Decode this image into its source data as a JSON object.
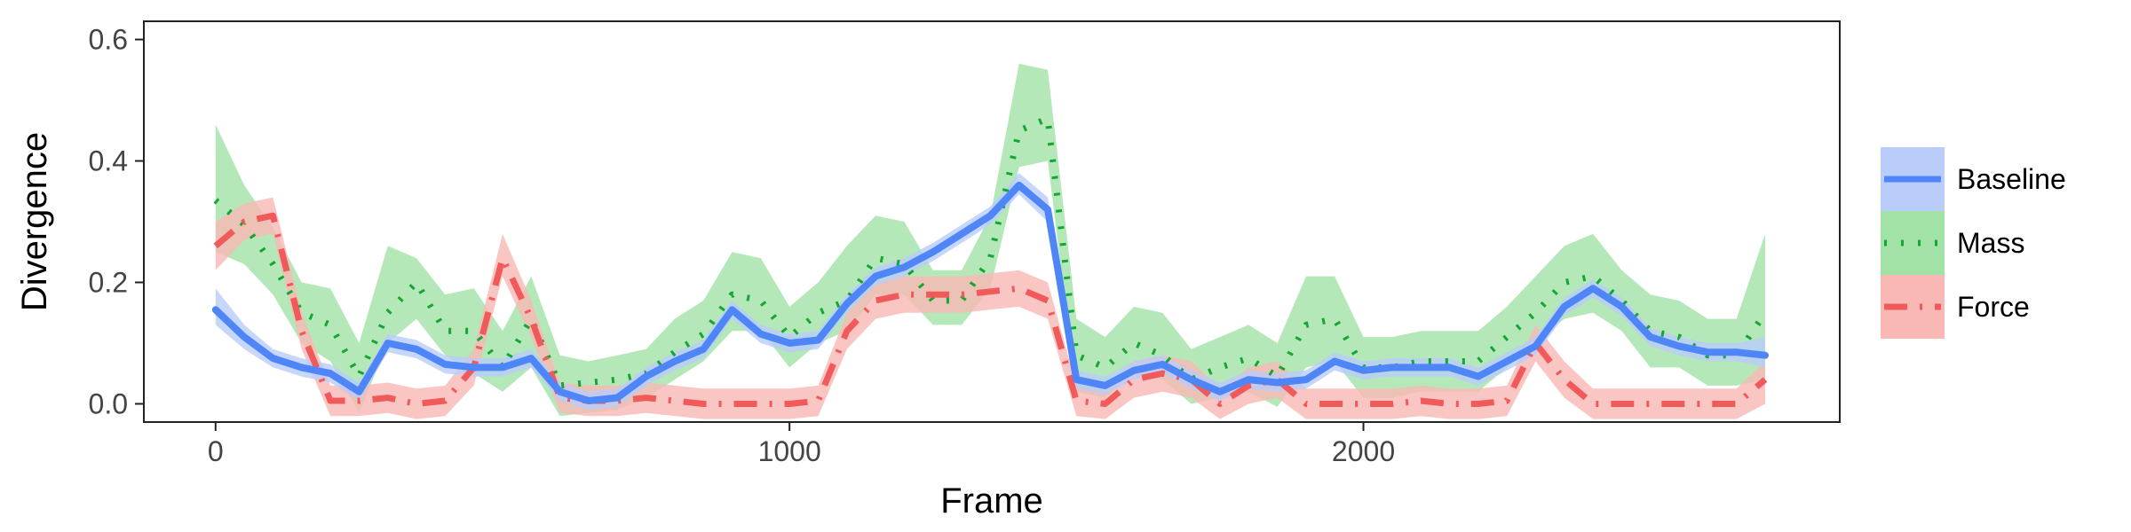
{
  "chart_data": {
    "type": "line",
    "xlabel": "Frame",
    "ylabel": "Divergence",
    "xlim": [
      -125,
      2830
    ],
    "ylim": [
      -0.03,
      0.63
    ],
    "x_ticks": [
      0,
      1000,
      2000
    ],
    "y_ticks": [
      0.0,
      0.2,
      0.4,
      0.6
    ],
    "x_tick_labels": [
      "0",
      "1000",
      "2000"
    ],
    "y_tick_labels": [
      "0.0",
      "0.2",
      "0.4",
      "0.6"
    ],
    "grid": false,
    "legend_position": "right",
    "x": [
      0,
      50,
      100,
      150,
      200,
      250,
      300,
      350,
      400,
      450,
      500,
      550,
      600,
      650,
      700,
      750,
      800,
      850,
      900,
      950,
      1000,
      1050,
      1100,
      1150,
      1200,
      1250,
      1300,
      1350,
      1400,
      1450,
      1500,
      1550,
      1600,
      1650,
      1700,
      1750,
      1800,
      1850,
      1900,
      1950,
      2000,
      2050,
      2100,
      2150,
      2200,
      2250,
      2300,
      2350,
      2400,
      2450,
      2500,
      2550,
      2600,
      2650,
      2700
    ],
    "series": [
      {
        "name": "Baseline",
        "color": "#4F86F7",
        "band_color": "#B9CCFA",
        "values": [
          0.155,
          0.11,
          0.075,
          0.06,
          0.05,
          0.02,
          0.1,
          0.09,
          0.065,
          0.06,
          0.06,
          0.075,
          0.02,
          0.005,
          0.01,
          0.045,
          0.07,
          0.09,
          0.155,
          0.115,
          0.1,
          0.105,
          0.165,
          0.21,
          0.225,
          0.25,
          0.28,
          0.31,
          0.36,
          0.32,
          0.04,
          0.03,
          0.055,
          0.065,
          0.04,
          0.02,
          0.04,
          0.035,
          0.04,
          0.07,
          0.055,
          0.06,
          0.06,
          0.06,
          0.045,
          0.07,
          0.095,
          0.16,
          0.19,
          0.16,
          0.11,
          0.095,
          0.085,
          0.085,
          0.08
        ],
        "lower": [
          0.13,
          0.09,
          0.06,
          0.045,
          0.035,
          0.005,
          0.085,
          0.075,
          0.05,
          0.045,
          0.045,
          0.06,
          0.005,
          -0.01,
          -0.005,
          0.03,
          0.055,
          0.075,
          0.14,
          0.1,
          0.085,
          0.09,
          0.15,
          0.195,
          0.21,
          0.235,
          0.265,
          0.295,
          0.345,
          0.3,
          0.025,
          0.015,
          0.04,
          0.05,
          0.025,
          0.005,
          0.025,
          0.02,
          0.025,
          0.055,
          0.04,
          0.045,
          0.045,
          0.045,
          0.03,
          0.055,
          0.08,
          0.145,
          0.175,
          0.145,
          0.095,
          0.08,
          0.07,
          0.07,
          0.06
        ],
        "upper": [
          0.19,
          0.13,
          0.09,
          0.075,
          0.065,
          0.035,
          0.115,
          0.105,
          0.08,
          0.075,
          0.075,
          0.09,
          0.035,
          0.02,
          0.025,
          0.06,
          0.085,
          0.105,
          0.17,
          0.13,
          0.115,
          0.12,
          0.18,
          0.225,
          0.24,
          0.265,
          0.295,
          0.325,
          0.38,
          0.34,
          0.055,
          0.045,
          0.07,
          0.08,
          0.055,
          0.035,
          0.055,
          0.05,
          0.055,
          0.085,
          0.07,
          0.075,
          0.075,
          0.075,
          0.06,
          0.085,
          0.11,
          0.175,
          0.205,
          0.175,
          0.125,
          0.11,
          0.1,
          0.1,
          0.11
        ]
      },
      {
        "name": "Mass",
        "color": "#16A635",
        "band_color": "#A3E2A6",
        "values": [
          0.335,
          0.295,
          0.23,
          0.15,
          0.13,
          0.045,
          0.15,
          0.2,
          0.12,
          0.12,
          0.06,
          0.14,
          0.03,
          0.035,
          0.04,
          0.05,
          0.085,
          0.115,
          0.18,
          0.17,
          0.11,
          0.15,
          0.17,
          0.24,
          0.23,
          0.17,
          0.17,
          0.24,
          0.45,
          0.47,
          0.08,
          0.06,
          0.1,
          0.08,
          0.04,
          0.06,
          0.075,
          0.045,
          0.13,
          0.14,
          0.06,
          0.06,
          0.07,
          0.07,
          0.07,
          0.11,
          0.15,
          0.2,
          0.21,
          0.17,
          0.12,
          0.11,
          0.08,
          0.08,
          0.15
        ],
        "lower": [
          0.25,
          0.23,
          0.18,
          0.1,
          0.07,
          -0.015,
          0.1,
          0.14,
          0.08,
          0.05,
          0.02,
          0.06,
          -0.02,
          -0.015,
          -0.01,
          0.01,
          0.04,
          0.07,
          0.12,
          0.12,
          0.06,
          0.1,
          0.12,
          0.18,
          0.18,
          0.13,
          0.13,
          0.19,
          0.39,
          0.4,
          0.02,
          0.01,
          0.05,
          0.04,
          0.0,
          0.01,
          0.02,
          -0.005,
          0.06,
          0.07,
          0.01,
          0.01,
          0.02,
          0.02,
          0.02,
          0.06,
          0.1,
          0.14,
          0.15,
          0.12,
          0.06,
          0.06,
          0.03,
          0.03,
          0.04
        ],
        "upper": [
          0.46,
          0.36,
          0.29,
          0.2,
          0.19,
          0.1,
          0.26,
          0.24,
          0.18,
          0.19,
          0.12,
          0.21,
          0.08,
          0.07,
          0.08,
          0.09,
          0.14,
          0.17,
          0.25,
          0.24,
          0.16,
          0.2,
          0.26,
          0.31,
          0.3,
          0.22,
          0.22,
          0.31,
          0.56,
          0.55,
          0.14,
          0.11,
          0.16,
          0.15,
          0.09,
          0.11,
          0.13,
          0.1,
          0.21,
          0.21,
          0.11,
          0.11,
          0.12,
          0.12,
          0.12,
          0.16,
          0.21,
          0.26,
          0.28,
          0.22,
          0.18,
          0.17,
          0.14,
          0.14,
          0.28
        ]
      },
      {
        "name": "Force",
        "color": "#F15A5A",
        "band_color": "#F9B8B4",
        "values": [
          0.26,
          0.3,
          0.31,
          0.12,
          0.005,
          0.005,
          0.01,
          0.0,
          0.005,
          0.06,
          0.24,
          0.14,
          0.01,
          0.005,
          0.005,
          0.01,
          0.005,
          0.0,
          0.0,
          0.0,
          0.0,
          0.005,
          0.12,
          0.17,
          0.18,
          0.18,
          0.18,
          0.185,
          0.19,
          0.17,
          0.005,
          0.0,
          0.04,
          0.05,
          0.04,
          0.0,
          0.03,
          0.04,
          0.0,
          0.0,
          0.0,
          0.0,
          0.005,
          0.0,
          0.0,
          0.005,
          0.1,
          0.04,
          0.0,
          0.0,
          0.0,
          0.0,
          0.0,
          0.0,
          0.04
        ],
        "lower": [
          0.22,
          0.27,
          0.28,
          0.09,
          -0.02,
          -0.02,
          -0.015,
          -0.025,
          -0.02,
          0.03,
          0.21,
          0.11,
          -0.015,
          -0.02,
          -0.02,
          -0.015,
          -0.02,
          -0.025,
          -0.025,
          -0.025,
          -0.025,
          -0.02,
          0.09,
          0.14,
          0.15,
          0.15,
          0.15,
          0.155,
          0.16,
          0.14,
          -0.02,
          -0.025,
          0.01,
          0.02,
          0.01,
          -0.025,
          0.0,
          0.01,
          -0.025,
          -0.025,
          -0.025,
          -0.025,
          -0.02,
          -0.025,
          -0.025,
          -0.02,
          0.07,
          0.01,
          -0.025,
          -0.025,
          -0.025,
          -0.025,
          -0.025,
          -0.025,
          0.0
        ],
        "upper": [
          0.3,
          0.33,
          0.34,
          0.15,
          0.03,
          0.03,
          0.035,
          0.025,
          0.03,
          0.09,
          0.28,
          0.17,
          0.035,
          0.03,
          0.03,
          0.035,
          0.03,
          0.025,
          0.025,
          0.025,
          0.025,
          0.03,
          0.15,
          0.2,
          0.21,
          0.21,
          0.21,
          0.215,
          0.22,
          0.2,
          0.03,
          0.025,
          0.07,
          0.08,
          0.07,
          0.025,
          0.06,
          0.07,
          0.025,
          0.025,
          0.025,
          0.025,
          0.03,
          0.025,
          0.025,
          0.03,
          0.13,
          0.07,
          0.025,
          0.025,
          0.025,
          0.025,
          0.025,
          0.025,
          0.07
        ]
      }
    ]
  }
}
